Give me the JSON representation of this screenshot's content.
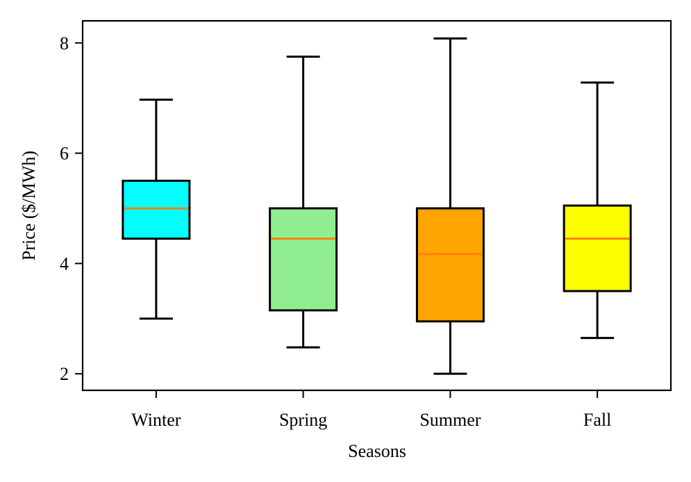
{
  "chart_data": {
    "type": "boxplot",
    "title": "",
    "xlabel": "Seasons",
    "ylabel": "Price ($/MWh)",
    "ylim": [
      1.7,
      8.4
    ],
    "yticks": [
      2,
      4,
      6,
      8
    ],
    "categories": [
      "Winter",
      "Spring",
      "Summer",
      "Fall"
    ],
    "boxes": [
      {
        "name": "Winter",
        "whisker_low": 3.0,
        "q1": 4.45,
        "median": 5.0,
        "q3": 5.5,
        "whisker_high": 6.97,
        "color": "#00ffff"
      },
      {
        "name": "Spring",
        "whisker_low": 2.48,
        "q1": 3.15,
        "median": 4.45,
        "q3": 5.0,
        "whisker_high": 7.75,
        "color": "#90ee90"
      },
      {
        "name": "Summer",
        "whisker_low": 2.0,
        "q1": 2.95,
        "median": 4.17,
        "q3": 5.0,
        "whisker_high": 8.08,
        "color": "#ffa500"
      },
      {
        "name": "Fall",
        "whisker_low": 2.65,
        "q1": 3.5,
        "median": 4.45,
        "q3": 5.05,
        "whisker_high": 7.28,
        "color": "#ffff00"
      }
    ],
    "median_color": "#ff7f0e",
    "grid": false,
    "legend": "none"
  }
}
